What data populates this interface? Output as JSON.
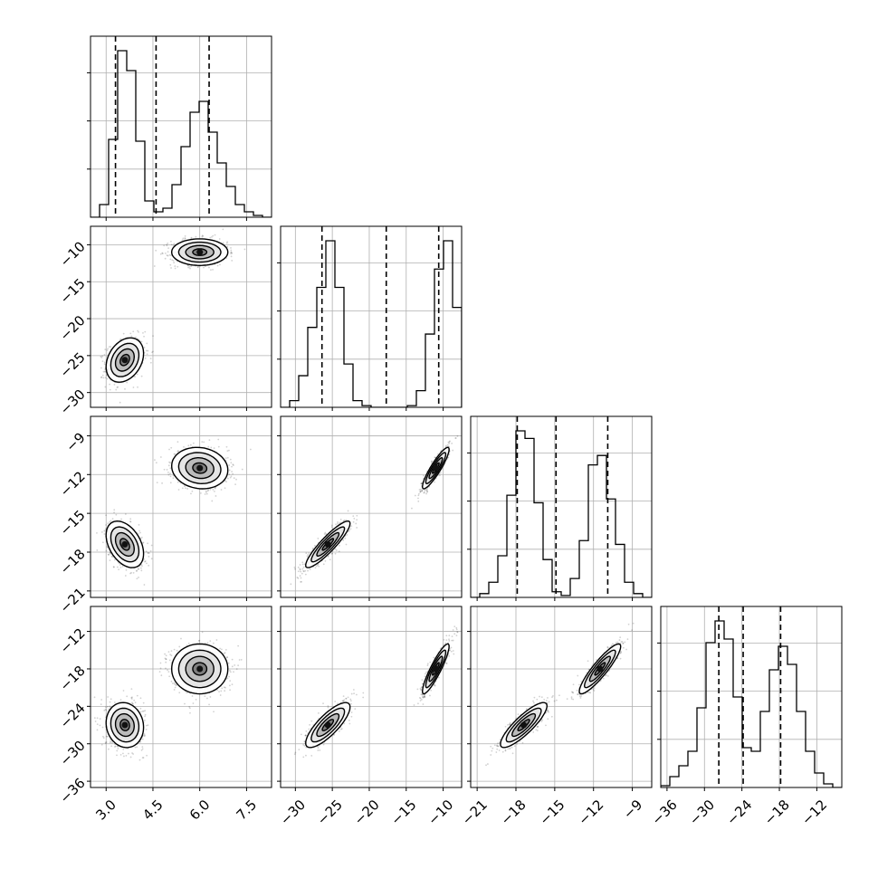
{
  "chart_data": {
    "type": "corner",
    "colors": {
      "ink": "#000000",
      "grid": "#b0b0b0",
      "scatter": "#000000"
    },
    "grid": true,
    "parameters": [
      {
        "index": 0,
        "range": [
          2.5,
          8.3
        ],
        "ticks": [
          3.0,
          4.5,
          6.0,
          7.5
        ],
        "tick_labels": [
          "3.0",
          "4.5",
          "6.0",
          "7.5"
        ],
        "quantiles": [
          3.3,
          4.6,
          6.3
        ],
        "hist_edges": [
          2.5,
          2.79,
          3.08,
          3.37,
          3.66,
          3.95,
          4.24,
          4.53,
          4.82,
          5.11,
          5.4,
          5.69,
          5.98,
          6.27,
          6.56,
          6.85,
          7.14,
          7.43,
          7.72,
          8.01,
          8.3
        ],
        "hist_counts": [
          0,
          0.07,
          0.43,
          0.92,
          0.81,
          0.42,
          0.09,
          0.03,
          0.05,
          0.18,
          0.39,
          0.58,
          0.64,
          0.47,
          0.3,
          0.17,
          0.07,
          0.03,
          0.01,
          0.0
        ]
      },
      {
        "index": 1,
        "range": [
          -32,
          -7.5
        ],
        "ticks": [
          -30,
          -25,
          -20,
          -15,
          -10
        ],
        "tick_labels": [
          "−30",
          "−25",
          "−20",
          "−15",
          "−10"
        ],
        "quantiles": [
          -26.4,
          -17.7,
          -10.6
        ],
        "hist_edges": [
          -32.0,
          -30.775,
          -29.55,
          -28.325,
          -27.1,
          -25.875,
          -24.65,
          -23.425,
          -22.2,
          -20.975,
          -19.75,
          -18.525,
          -17.3,
          -16.075,
          -14.85,
          -13.625,
          -12.4,
          -11.175,
          -9.95,
          -8.725,
          -7.5
        ],
        "hist_counts": [
          0.0,
          0.04,
          0.19,
          0.48,
          0.72,
          1.0,
          0.72,
          0.26,
          0.04,
          0.01,
          0.0,
          0.0,
          0.0,
          0.0,
          0.01,
          0.1,
          0.44,
          0.83,
          1.0,
          0.6
        ]
      },
      {
        "index": 2,
        "range": [
          -21.5,
          -7.5
        ],
        "ticks": [
          -21,
          -18,
          -15,
          -12,
          -9
        ],
        "tick_labels": [
          "−21",
          "−18",
          "−15",
          "−12",
          "−9"
        ],
        "quantiles": [
          -17.9,
          -14.9,
          -10.9
        ],
        "hist_edges": [
          -21.5,
          -20.8,
          -20.1,
          -19.4,
          -18.7,
          -18.0,
          -17.3,
          -16.6,
          -15.9,
          -15.2,
          -14.5,
          -13.8,
          -13.1,
          -12.4,
          -11.7,
          -11.0,
          -10.3,
          -9.6,
          -8.9,
          -8.2,
          -7.5
        ],
        "hist_counts": [
          0.0,
          0.02,
          0.08,
          0.22,
          0.54,
          0.88,
          0.84,
          0.5,
          0.2,
          0.03,
          0.01,
          0.1,
          0.3,
          0.7,
          0.75,
          0.52,
          0.28,
          0.08,
          0.02,
          0.0
        ]
      },
      {
        "index": 3,
        "range": [
          -37,
          -8
        ],
        "ticks": [
          -36,
          -30,
          -24,
          -18,
          -12
        ],
        "tick_labels": [
          "−36",
          "−30",
          "−24",
          "−18",
          "−12"
        ],
        "quantiles": [
          -27.7,
          -23.8,
          -17.8
        ],
        "hist_edges": [
          -37.0,
          -35.55,
          -34.1,
          -32.65,
          -31.2,
          -29.75,
          -28.3,
          -26.85,
          -25.4,
          -23.95,
          -22.5,
          -21.05,
          -19.6,
          -18.15,
          -16.7,
          -15.25,
          -13.8,
          -12.35,
          -10.9,
          -9.45,
          -8.0
        ],
        "hist_counts": [
          0.01,
          0.06,
          0.12,
          0.2,
          0.44,
          0.8,
          0.92,
          0.82,
          0.5,
          0.22,
          0.2,
          0.42,
          0.65,
          0.78,
          0.68,
          0.42,
          0.2,
          0.08,
          0.02,
          0.0
        ]
      }
    ],
    "clusters": [
      {
        "mean": [
          3.6,
          -25.6,
          -17.4,
          -27.0
        ],
        "sd": [
          0.3,
          1.5,
          0.9,
          1.8
        ]
      },
      {
        "mean": [
          6.0,
          -11.0,
          -11.5,
          -18.0
        ],
        "sd": [
          0.45,
          0.9,
          0.8,
          2.0
        ]
      }
    ],
    "correlations": [
      {
        "pair": [
          1,
          0
        ],
        "cluster": 0,
        "rho": 0.3
      },
      {
        "pair": [
          1,
          0
        ],
        "cluster": 1,
        "rho": 0.0
      },
      {
        "pair": [
          2,
          0
        ],
        "cluster": 0,
        "rho": -0.4
      },
      {
        "pair": [
          2,
          0
        ],
        "cluster": 1,
        "rho": -0.1
      },
      {
        "pair": [
          2,
          1
        ],
        "cluster": 0,
        "rho": 0.9
      },
      {
        "pair": [
          2,
          1
        ],
        "cluster": 1,
        "rho": 0.9
      },
      {
        "pair": [
          3,
          0
        ],
        "cluster": 0,
        "rho": -0.1
      },
      {
        "pair": [
          3,
          0
        ],
        "cluster": 1,
        "rho": 0.0
      },
      {
        "pair": [
          3,
          1
        ],
        "cluster": 0,
        "rho": 0.8
      },
      {
        "pair": [
          3,
          1
        ],
        "cluster": 1,
        "rho": 0.9
      },
      {
        "pair": [
          3,
          2
        ],
        "cluster": 0,
        "rho": 0.85
      },
      {
        "pair": [
          3,
          2
        ],
        "cluster": 1,
        "rho": 0.9
      }
    ],
    "contour_levels_sigma": [
      0.5,
      1.0,
      1.5,
      2.0
    ]
  }
}
